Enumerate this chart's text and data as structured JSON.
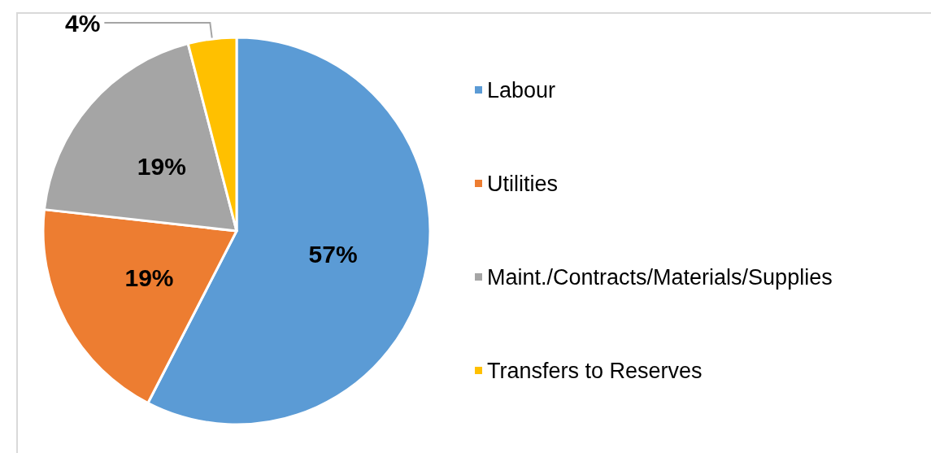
{
  "chart_data": {
    "type": "pie",
    "categories": [
      "Labour",
      "Utilities",
      "Maint./Contracts/Materials/Supplies",
      "Transfers to Reserves"
    ],
    "values": [
      57,
      19,
      19,
      4
    ],
    "colors": [
      "#5b9bd5",
      "#ed7d31",
      "#a5a5a5",
      "#ffc000"
    ],
    "value_labels": [
      "57%",
      "19%",
      "19%",
      "4%"
    ],
    "legend": "right"
  }
}
